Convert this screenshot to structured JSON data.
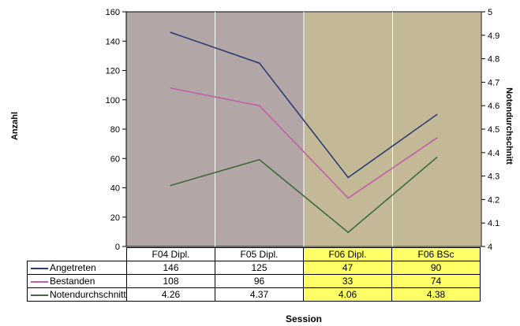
{
  "chart_data": {
    "type": "line",
    "categories": [
      "F04 Dipl.",
      "F05 Dipl.",
      "F06 Dipl.",
      "F06 BSc"
    ],
    "highlighted_categories": [
      "F06 Dipl.",
      "F06 BSc"
    ],
    "xlabel": "Session",
    "ylabel": "Anzahl",
    "y2label": "Notendurchschnitt",
    "ylim": [
      0,
      160
    ],
    "yticks": [
      0,
      20,
      40,
      60,
      80,
      100,
      120,
      140,
      160
    ],
    "y2lim": [
      4,
      5
    ],
    "y2ticks": [
      "4",
      "4.1",
      "4.2",
      "4.3",
      "4.4",
      "4.5",
      "4.6",
      "4.7",
      "4.8",
      "4.9",
      "5"
    ],
    "grid": false,
    "legend": "data-table-below",
    "series": [
      {
        "name": "Angetreten",
        "axis": "left",
        "values": [
          146,
          125,
          47,
          90
        ],
        "labels": [
          "146",
          "125",
          "47",
          "90"
        ],
        "color": "#2e3a73"
      },
      {
        "name": "Bestanden",
        "axis": "left",
        "values": [
          108,
          96,
          33,
          74
        ],
        "labels": [
          "108",
          "96",
          "33",
          "74"
        ],
        "color": "#c060a8"
      },
      {
        "name": "Notendurchschnitt",
        "axis": "right",
        "values": [
          4.26,
          4.37,
          4.06,
          4.38
        ],
        "labels": [
          "4.26",
          "4.37",
          "4.06",
          "4.38"
        ],
        "color": "#3d6b3d"
      }
    ],
    "colors": {
      "plot_background": "#b3a6a6",
      "highlight": "#ffff66"
    }
  }
}
